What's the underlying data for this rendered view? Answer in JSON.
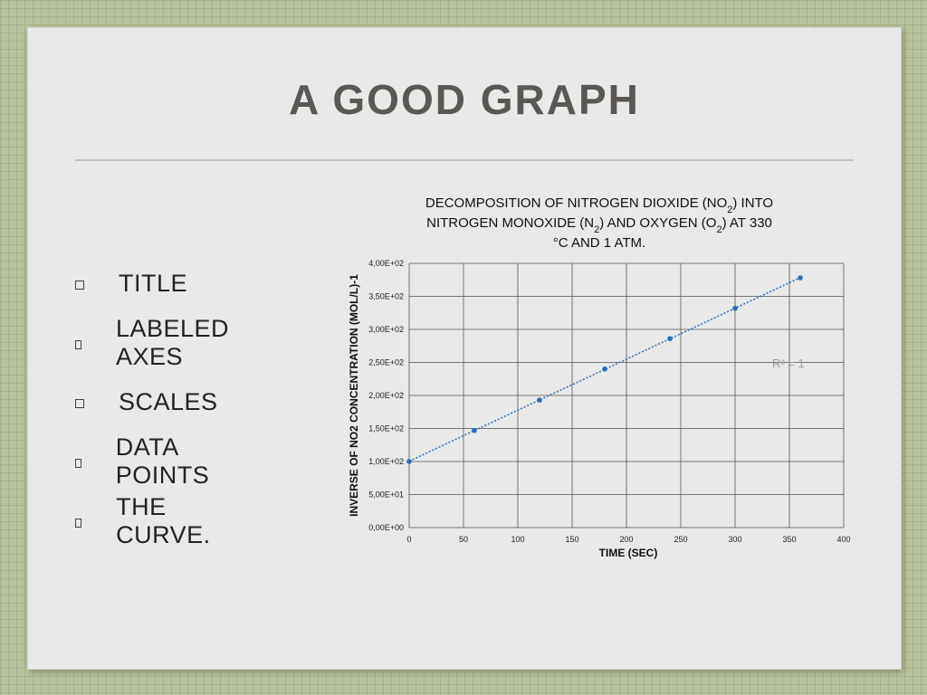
{
  "slide": {
    "title": "A GOOD GRAPH",
    "bullets": [
      "TITLE",
      "LABELED AXES",
      "SCALES",
      "DATA POINTS",
      "THE CURVE."
    ]
  },
  "chart_data": {
    "type": "scatter",
    "title_lines": [
      [
        "DECOMPOSITION OF NITROGEN DIOXIDE (NO",
        "2",
        ") INTO"
      ],
      [
        "NITROGEN MONOXIDE (N",
        "2",
        ") AND OXYGEN (O",
        "2",
        ") AT 330"
      ],
      [
        "°C AND 1 ATM."
      ]
    ],
    "xlabel": "TIME (SEC)",
    "ylabel": "INVERSE OF NO2 CONCENTRATION (MOL/L)-1",
    "xlim": [
      0,
      400
    ],
    "ylim": [
      0,
      400
    ],
    "x_ticks": [
      "0",
      "50",
      "100",
      "150",
      "200",
      "250",
      "300",
      "350",
      "400"
    ],
    "y_ticks": [
      "0,00E+00",
      "5,00E+01",
      "1,00E+02",
      "1,50E+02",
      "2,00E+02",
      "2,50E+02",
      "3,00E+02",
      "3,50E+02",
      "4,00E+02"
    ],
    "grid": true,
    "trendline": "linear, dotted",
    "annotation": "R² = 1",
    "colors": {
      "points": "#2a6db0",
      "trendline": "#2a6db0",
      "grid": "#555555"
    },
    "series": [
      {
        "x": [
          0,
          60,
          120,
          180,
          240,
          300,
          360
        ],
        "y": [
          100,
          147,
          193,
          240,
          286,
          332,
          378
        ]
      }
    ]
  }
}
